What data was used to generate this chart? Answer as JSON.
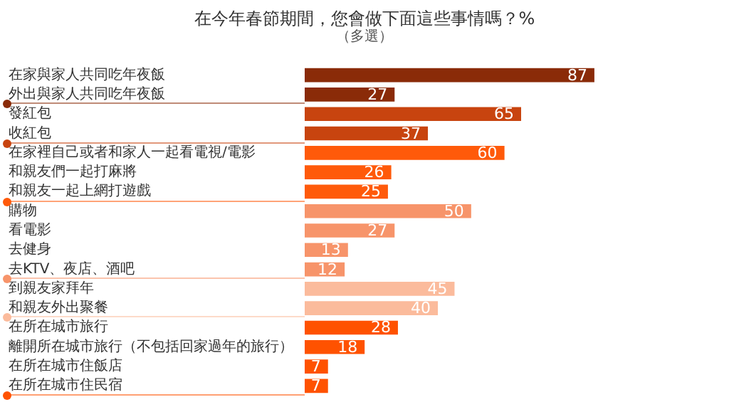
{
  "chart_data": {
    "type": "bar",
    "orientation": "horizontal",
    "title": "在今年春節期間，您會做下面這些事情嗎？%",
    "subtitle": "（多選）",
    "categories": [
      "在家與家人共同吃年夜飯",
      "外出與家人共同吃年夜飯",
      "發紅包",
      "收紅包",
      "在家裡自己或者和家人一起看電視/電影",
      "和親友們一起打麻將",
      "和親友一起上網打遊戲",
      "購物",
      "看電影",
      "去健身",
      "去KTV、夜店、酒吧",
      "到親友家拜年",
      "和親友外出聚餐",
      "在所在城市旅行",
      "離開所在城市旅行（不包括回家過年的旅行）",
      "在所在城市住飯店",
      "在所在城市住民宿"
    ],
    "values": [
      87,
      27,
      65,
      37,
      60,
      26,
      25,
      50,
      27,
      13,
      12,
      45,
      40,
      28,
      18,
      7,
      7
    ],
    "colors": [
      "#8a2b08",
      "#8a2b08",
      "#c8440f",
      "#c8440f",
      "#ff5a0a",
      "#ff5a0a",
      "#ff5a0a",
      "#f7946a",
      "#f7946a",
      "#f7946a",
      "#f7946a",
      "#fbbb9c",
      "#fbbb9c",
      "#ff5200",
      "#ff5200",
      "#ff5200",
      "#ff5200"
    ],
    "data_labels": true,
    "tick_labels": "y"
  }
}
